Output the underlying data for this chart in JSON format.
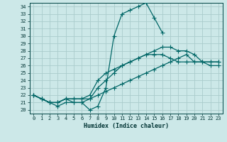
{
  "xlabel": "Humidex (Indice chaleur)",
  "bg_color": "#cce8e8",
  "grid_color": "#aacccc",
  "line_color": "#006666",
  "xlim": [
    -0.5,
    23.5
  ],
  "ylim": [
    19.5,
    34.5
  ],
  "xticks": [
    0,
    1,
    2,
    3,
    4,
    5,
    6,
    7,
    8,
    9,
    10,
    11,
    12,
    13,
    14,
    15,
    16,
    17,
    18,
    19,
    20,
    21,
    22,
    23
  ],
  "yticks": [
    20,
    21,
    22,
    23,
    24,
    25,
    26,
    27,
    28,
    29,
    30,
    31,
    32,
    33,
    34
  ],
  "line1_y": [
    22.0,
    21.5,
    21.0,
    20.5,
    21.0,
    21.0,
    21.0,
    20.0,
    20.5,
    23.0,
    30.0,
    33.0,
    33.5,
    34.0,
    34.5,
    32.5,
    30.5,
    null,
    null,
    null,
    null,
    null,
    null,
    null
  ],
  "line2_y": [
    22.0,
    21.5,
    21.0,
    21.0,
    21.5,
    21.5,
    21.5,
    21.5,
    23.0,
    24.0,
    25.0,
    26.0,
    26.5,
    27.0,
    27.5,
    28.0,
    28.5,
    28.5,
    28.0,
    28.0,
    27.5,
    26.5,
    26.0,
    26.0
  ],
  "line3_y": [
    22.0,
    21.5,
    21.0,
    21.0,
    21.5,
    21.5,
    21.5,
    22.0,
    24.0,
    25.0,
    25.5,
    26.0,
    26.5,
    27.0,
    27.5,
    27.5,
    27.5,
    27.0,
    26.5,
    26.5,
    26.5,
    26.5,
    26.5,
    26.5
  ],
  "line4_y": [
    22.0,
    21.5,
    21.0,
    21.0,
    21.5,
    21.0,
    21.0,
    21.5,
    22.0,
    22.5,
    23.0,
    23.5,
    24.0,
    24.5,
    25.0,
    25.5,
    26.0,
    26.5,
    27.0,
    27.5,
    26.5,
    26.5,
    26.5,
    26.5
  ]
}
